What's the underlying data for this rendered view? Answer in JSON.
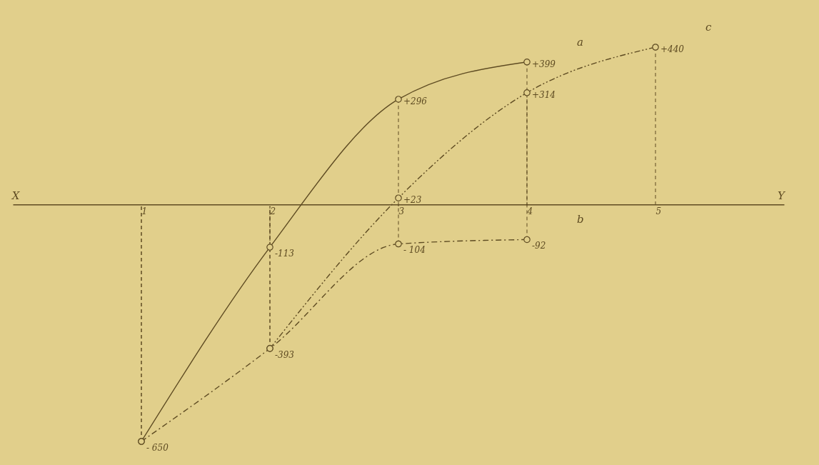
{
  "chart_data": {
    "type": "line",
    "categories": [
      "1",
      "2",
      "3",
      "4",
      "5"
    ],
    "annotations": [
      "X",
      "Y"
    ],
    "marker": "circle",
    "grid": "x",
    "legend": false,
    "series": [
      {
        "name": "a",
        "color": "#5e4b22",
        "line_style": "solid",
        "values": [
          -650,
          -113,
          296,
          399,
          null
        ],
        "value_labels": [
          "- 650",
          "-113",
          "+296",
          "+399",
          null
        ]
      },
      {
        "name": "b",
        "color": "#5e4b22",
        "line_style": "dashdot",
        "values": [
          -650,
          -393,
          -104,
          -92,
          null
        ],
        "value_labels": [
          null,
          "-393",
          "- 104",
          "-92",
          null
        ]
      },
      {
        "name": "c",
        "color": "#5e4b22",
        "line_style": "dashdotdot",
        "values": [
          null,
          -393,
          23,
          314,
          440
        ],
        "value_labels": [
          null,
          null,
          "+23",
          "+314",
          "+440"
        ]
      }
    ]
  }
}
